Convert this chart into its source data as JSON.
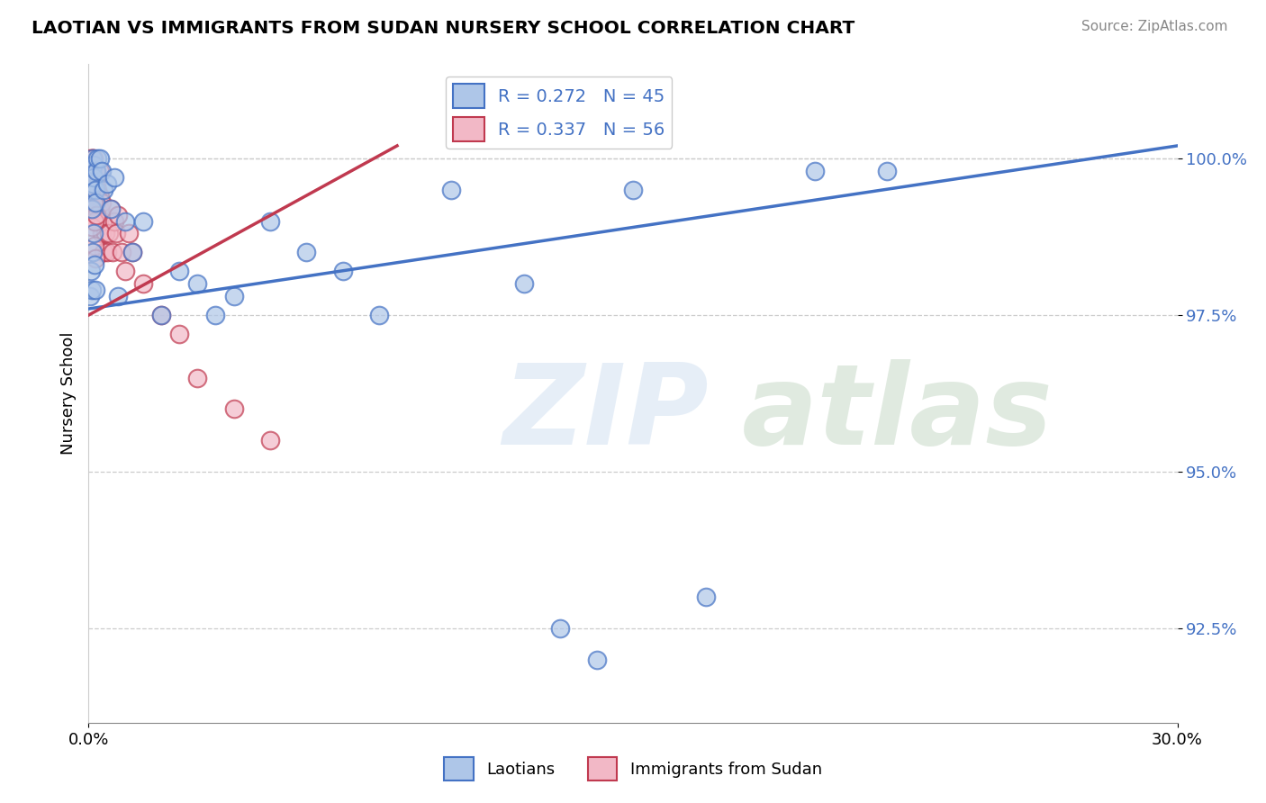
{
  "title": "LAOTIAN VS IMMIGRANTS FROM SUDAN NURSERY SCHOOL CORRELATION CHART",
  "source": "Source: ZipAtlas.com",
  "ylabel": "Nursery School",
  "blue_label": "Laotians",
  "pink_label": "Immigrants from Sudan",
  "blue_R": 0.272,
  "blue_N": 45,
  "pink_R": 0.337,
  "pink_N": 56,
  "blue_color": "#aec6e8",
  "pink_color": "#f2b8c6",
  "blue_line_color": "#4472c4",
  "pink_line_color": "#c0394f",
  "x_min": 0.0,
  "x_max": 30.0,
  "y_min": 91.0,
  "y_max": 101.5,
  "y_ticks": [
    92.5,
    95.0,
    97.5,
    100.0
  ],
  "y_tick_labels": [
    "92.5%",
    "95.0%",
    "97.5%",
    "100.0%"
  ],
  "blue_trendline_x": [
    0.0,
    30.0
  ],
  "blue_trendline_y": [
    97.6,
    100.2
  ],
  "pink_trendline_x": [
    0.0,
    8.5
  ],
  "pink_trendline_y": [
    97.5,
    100.2
  ],
  "blue_x": [
    0.05,
    0.08,
    0.1,
    0.12,
    0.12,
    0.15,
    0.15,
    0.18,
    0.2,
    0.22,
    0.25,
    0.3,
    0.35,
    0.4,
    0.5,
    0.6,
    0.7,
    0.8,
    1.0,
    1.2,
    1.5,
    2.0,
    2.5,
    3.0,
    3.5,
    4.0,
    5.0,
    6.0,
    7.0,
    8.0,
    10.0,
    12.0,
    13.0,
    14.0,
    15.0,
    17.0,
    20.0,
    22.0,
    0.05,
    0.07,
    0.09,
    0.11,
    0.13,
    0.16,
    0.19
  ],
  "blue_y": [
    99.5,
    99.2,
    99.8,
    99.6,
    100.0,
    99.9,
    99.7,
    99.5,
    99.3,
    99.8,
    100.0,
    100.0,
    99.8,
    99.5,
    99.6,
    99.2,
    99.7,
    97.8,
    99.0,
    98.5,
    99.0,
    97.5,
    98.2,
    98.0,
    97.5,
    97.8,
    99.0,
    98.5,
    98.2,
    97.5,
    99.5,
    98.0,
    92.5,
    92.0,
    99.5,
    93.0,
    99.8,
    99.8,
    97.8,
    98.2,
    97.9,
    98.5,
    98.8,
    98.3,
    97.9
  ],
  "pink_x": [
    0.03,
    0.05,
    0.05,
    0.07,
    0.08,
    0.08,
    0.1,
    0.1,
    0.12,
    0.12,
    0.13,
    0.15,
    0.15,
    0.15,
    0.18,
    0.18,
    0.2,
    0.2,
    0.22,
    0.22,
    0.25,
    0.25,
    0.28,
    0.3,
    0.3,
    0.32,
    0.35,
    0.35,
    0.38,
    0.4,
    0.45,
    0.5,
    0.55,
    0.6,
    0.65,
    0.7,
    0.75,
    0.8,
    0.9,
    1.0,
    1.1,
    1.2,
    1.5,
    2.0,
    2.5,
    3.0,
    4.0,
    5.0,
    0.06,
    0.09,
    0.11,
    0.14,
    0.16,
    0.17,
    0.19,
    0.21
  ],
  "pink_y": [
    99.3,
    100.0,
    99.8,
    99.9,
    100.0,
    99.7,
    99.8,
    99.9,
    100.0,
    99.6,
    99.7,
    100.0,
    99.8,
    99.5,
    99.7,
    99.5,
    99.8,
    99.4,
    99.6,
    99.3,
    99.5,
    99.2,
    99.0,
    99.8,
    99.4,
    99.2,
    99.3,
    98.8,
    99.0,
    98.5,
    98.8,
    98.5,
    98.8,
    99.2,
    98.5,
    99.0,
    98.8,
    99.1,
    98.5,
    98.2,
    98.8,
    98.5,
    98.0,
    97.5,
    97.2,
    96.5,
    96.0,
    95.5,
    99.5,
    98.9,
    99.2,
    99.3,
    98.6,
    99.0,
    98.4,
    99.1
  ]
}
